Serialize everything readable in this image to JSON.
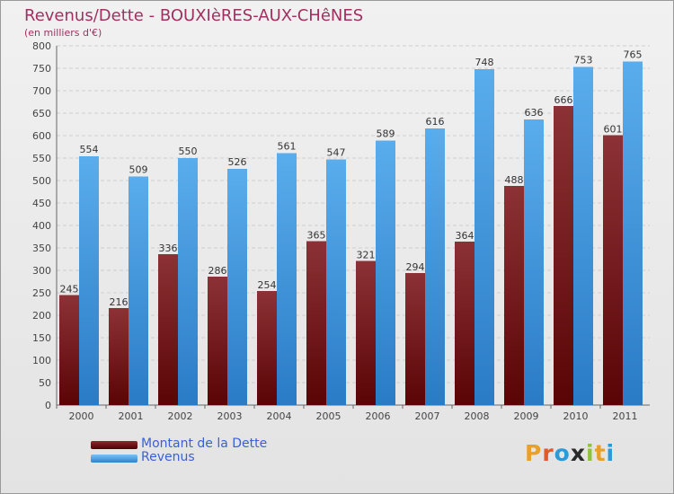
{
  "title": "Revenus/Dette - BOUXIèRES-AUX-CHêNES",
  "subtitle": "(en milliers d'€)",
  "colors": {
    "dette_light": "#8c3236",
    "dette_dark": "#5a0406",
    "revenus_light": "#5aadec",
    "revenus_dark": "#2a7bc6",
    "grid": "#cfcfcf"
  },
  "legend": [
    {
      "label": "Montant de la Dette",
      "color": "#6a0a0e"
    },
    {
      "label": "Revenus",
      "color": "#3d8fdc"
    }
  ],
  "logo": {
    "text": "Proxiti"
  },
  "chart_data": {
    "type": "bar",
    "title": "Revenus/Dette - BOUXIèRES-AUX-CHêNES",
    "ylabel": "(en milliers d'€)",
    "categories": [
      "2000",
      "2001",
      "2002",
      "2003",
      "2004",
      "2005",
      "2006",
      "2007",
      "2008",
      "2009",
      "2010",
      "2011"
    ],
    "series": [
      {
        "name": "Montant de la Dette",
        "values": [
          245,
          216,
          336,
          286,
          254,
          365,
          321,
          294,
          364,
          488,
          666,
          601
        ]
      },
      {
        "name": "Revenus",
        "values": [
          554,
          509,
          550,
          526,
          561,
          547,
          589,
          616,
          748,
          636,
          753,
          765
        ]
      }
    ],
    "ylim": [
      0,
      800
    ],
    "ytick_step": 50,
    "grid": true,
    "legend_position": "bottom-left"
  }
}
